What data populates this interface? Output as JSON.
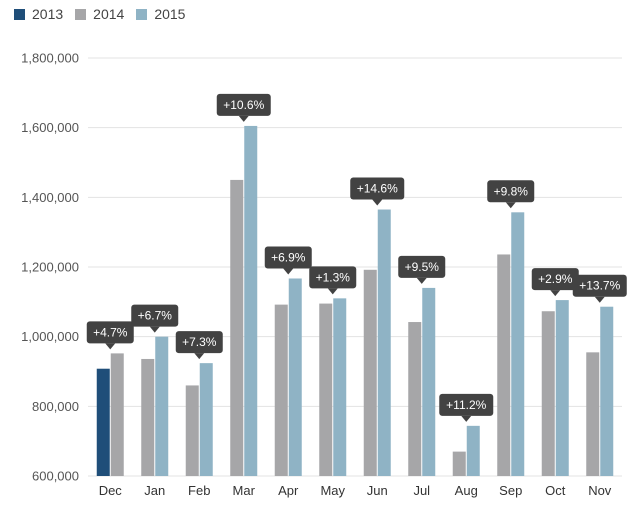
{
  "chart_data": {
    "type": "bar",
    "categories": [
      "Dec",
      "Jan",
      "Feb",
      "Mar",
      "Apr",
      "May",
      "Jun",
      "Jul",
      "Aug",
      "Sep",
      "Oct",
      "Nov"
    ],
    "series": [
      {
        "name": "2013",
        "color": "#1f4e79",
        "values": [
          908000,
          null,
          null,
          null,
          null,
          null,
          null,
          null,
          null,
          null,
          null,
          null
        ]
      },
      {
        "name": "2014",
        "color": "#a6a6a8",
        "values": [
          952000,
          936000,
          860000,
          1450000,
          1092000,
          1095000,
          1192000,
          1042000,
          670000,
          1236000,
          1073000,
          955000
        ]
      },
      {
        "name": "2015",
        "color": "#8fb3c5",
        "values": [
          null,
          1000000,
          924000,
          1605000,
          1167000,
          1110000,
          1365000,
          1140000,
          744000,
          1357000,
          1105000,
          1086000
        ]
      }
    ],
    "annotations": [
      "+4.7%",
      "+6.7%",
      "+7.3%",
      "+10.6%",
      "+6.9%",
      "+1.3%",
      "+14.6%",
      "+9.5%",
      "+11.2%",
      "+9.8%",
      "+2.9%",
      "+13.7%"
    ],
    "yticks": [
      600000,
      800000,
      1000000,
      1200000,
      1400000,
      1600000,
      1800000
    ],
    "ytick_labels": [
      "600,000",
      "800,000",
      "1,000,000",
      "1,200,000",
      "1,400,000",
      "1,600,000",
      "1,800,000"
    ],
    "ylim": [
      600000,
      1800000
    ],
    "grid": true,
    "legend_position": "top-left",
    "title": "",
    "xlabel": "",
    "ylabel": "",
    "callout_color": "#424242",
    "grid_color": "#e3e3e3"
  }
}
